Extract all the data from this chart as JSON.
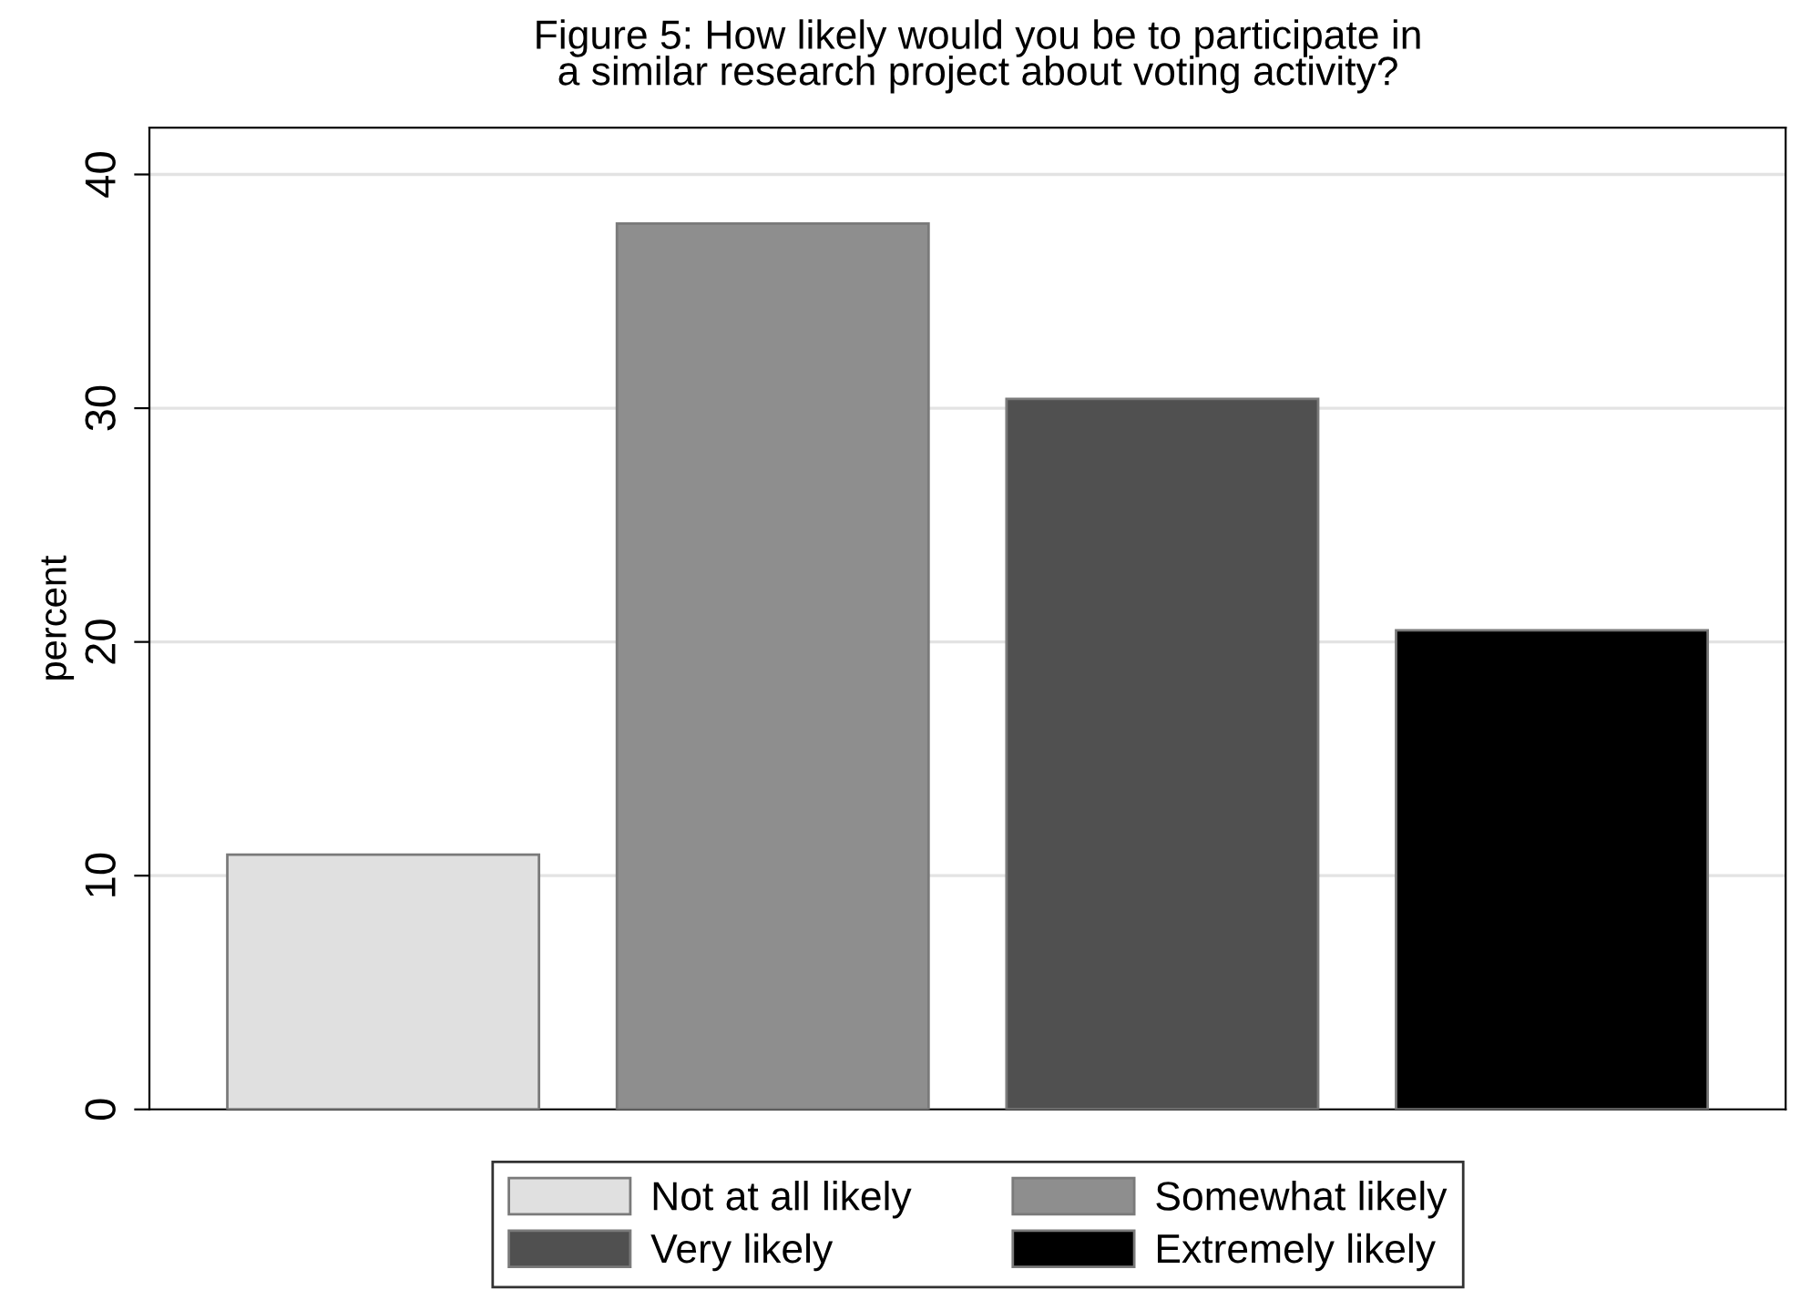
{
  "chart_data": {
    "type": "bar",
    "title": "Figure 5: How likely would you be to participate in\na similar research project about voting activity?",
    "ylabel": "percent",
    "categories": [
      null,
      null,
      null,
      null
    ],
    "series": [
      {
        "name": "Not at all likely",
        "color": "#e0e0e0",
        "values": [
          10.9,
          null,
          null,
          null
        ]
      },
      {
        "name": "Somewhat likely",
        "color": "#8e8e8e",
        "values": [
          null,
          37.9,
          null,
          null
        ]
      },
      {
        "name": "Very likely",
        "color": "#505050",
        "values": [
          null,
          null,
          30.4,
          null
        ]
      },
      {
        "name": "Extremely likely",
        "color": "#000000",
        "values": [
          null,
          null,
          null,
          20.5
        ]
      }
    ],
    "ylim": [
      0,
      42
    ],
    "yticks": [
      0,
      10,
      20,
      30,
      40
    ],
    "grid": "y",
    "legend": "bottom"
  }
}
